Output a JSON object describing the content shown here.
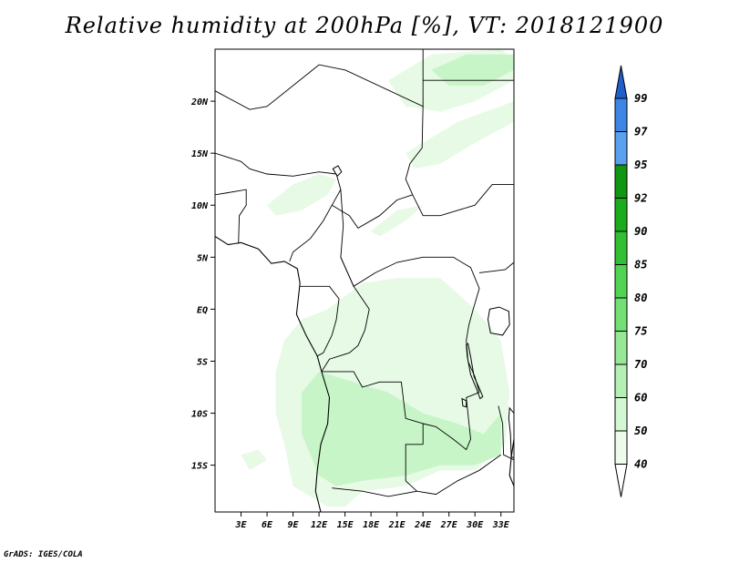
{
  "title": "Relative humidity at 200hPa [%], VT: 2018121900",
  "credit": "GrADS: IGES/COLA",
  "map": {
    "lon_range": [
      0,
      34.5
    ],
    "lat_range": [
      -19.5,
      25
    ],
    "lat_ticks": [
      {
        "lat": 20,
        "label": "20N"
      },
      {
        "lat": 15,
        "label": "15N"
      },
      {
        "lat": 10,
        "label": "10N"
      },
      {
        "lat": 5,
        "label": "5N"
      },
      {
        "lat": 0,
        "label": "EQ"
      },
      {
        "lat": -5,
        "label": "5S"
      },
      {
        "lat": -10,
        "label": "10S"
      },
      {
        "lat": -15,
        "label": "15S"
      }
    ],
    "lon_ticks": [
      {
        "lon": 3,
        "label": "3E"
      },
      {
        "lon": 6,
        "label": "6E"
      },
      {
        "lon": 9,
        "label": "9E"
      },
      {
        "lon": 12,
        "label": "12E"
      },
      {
        "lon": 15,
        "label": "15E"
      },
      {
        "lon": 18,
        "label": "18E"
      },
      {
        "lon": 21,
        "label": "21E"
      },
      {
        "lon": 24,
        "label": "24E"
      },
      {
        "lon": 27,
        "label": "27E"
      },
      {
        "lon": 30,
        "label": "30E"
      },
      {
        "lon": 33,
        "label": "33E"
      }
    ],
    "shaded_regions": [
      {
        "name": "southern-humid-band",
        "min_value": 40,
        "max_value": 50,
        "color": "#e6fae6",
        "points": [
          [
            13,
            -19
          ],
          [
            9,
            -17
          ],
          [
            8,
            -13
          ],
          [
            7,
            -10
          ],
          [
            7,
            -6
          ],
          [
            8,
            -3
          ],
          [
            10,
            -1
          ],
          [
            13,
            0
          ],
          [
            17,
            2.5
          ],
          [
            21,
            3
          ],
          [
            26,
            3
          ],
          [
            30,
            0
          ],
          [
            33,
            -3
          ],
          [
            34,
            -8
          ],
          [
            33.5,
            -13
          ],
          [
            30,
            -15.5
          ],
          [
            26,
            -15.5
          ],
          [
            22,
            -17
          ],
          [
            17,
            -17.5
          ],
          [
            15,
            -19
          ]
        ]
      },
      {
        "name": "southern-core",
        "min_value": 50,
        "max_value": 60,
        "color": "#c8f5c8",
        "points": [
          [
            12,
            -16
          ],
          [
            10,
            -12
          ],
          [
            10,
            -8
          ],
          [
            12,
            -6
          ],
          [
            16,
            -7
          ],
          [
            20,
            -8
          ],
          [
            24,
            -10
          ],
          [
            28,
            -11
          ],
          [
            31,
            -12
          ],
          [
            33,
            -10
          ],
          [
            33,
            -14
          ],
          [
            30,
            -15
          ],
          [
            26,
            -15
          ],
          [
            22,
            -16
          ],
          [
            17,
            -16.5
          ],
          [
            14,
            -17
          ]
        ]
      },
      {
        "name": "northeast-streak-1",
        "min_value": 40,
        "max_value": 50,
        "color": "#e6fae6",
        "points": [
          [
            20,
            22
          ],
          [
            25,
            24.5
          ],
          [
            33,
            25
          ],
          [
            34.5,
            24
          ],
          [
            34.5,
            22
          ],
          [
            30,
            20
          ],
          [
            26,
            19
          ],
          [
            22,
            19.5
          ]
        ]
      },
      {
        "name": "northeast-streak-2",
        "min_value": 50,
        "max_value": 60,
        "color": "#c8f5c8",
        "points": [
          [
            25,
            23
          ],
          [
            29,
            24.5
          ],
          [
            34.5,
            24.5
          ],
          [
            34.5,
            23
          ],
          [
            31,
            21.5
          ],
          [
            27,
            21.5
          ]
        ]
      },
      {
        "name": "northeast-streak-3",
        "min_value": 40,
        "max_value": 50,
        "color": "#e6fae6",
        "points": [
          [
            22,
            15
          ],
          [
            28,
            18
          ],
          [
            34.5,
            20
          ],
          [
            34.5,
            18
          ],
          [
            30,
            16
          ],
          [
            26,
            14
          ],
          [
            23,
            13.5
          ]
        ]
      },
      {
        "name": "west-african-patch",
        "min_value": 40,
        "max_value": 50,
        "color": "#e6fae6",
        "points": [
          [
            6,
            10
          ],
          [
            9,
            12
          ],
          [
            12,
            13
          ],
          [
            14,
            12.5
          ],
          [
            13,
            11
          ],
          [
            10,
            9.5
          ],
          [
            7,
            9
          ]
        ]
      },
      {
        "name": "central-streak",
        "min_value": 40,
        "max_value": 50,
        "color": "#e6fae6",
        "points": [
          [
            18,
            7.5
          ],
          [
            21,
            9.5
          ],
          [
            24,
            10
          ],
          [
            22,
            8.5
          ],
          [
            19,
            7
          ]
        ]
      },
      {
        "name": "southwest-fleck",
        "min_value": 40,
        "max_value": 50,
        "color": "#e6fae6",
        "points": [
          [
            3,
            -14
          ],
          [
            5,
            -13.5
          ],
          [
            6,
            -14.5
          ],
          [
            4,
            -15.5
          ]
        ]
      }
    ],
    "coastlines": [
      {
        "name": "west-coast",
        "points": [
          [
            0,
            7
          ],
          [
            1.5,
            6.2
          ],
          [
            3,
            6.4
          ],
          [
            5,
            5.8
          ],
          [
            6.5,
            4.4
          ],
          [
            8,
            4.6
          ],
          [
            9.5,
            3.9
          ],
          [
            9.8,
            2.5
          ],
          [
            9.6,
            1.0
          ],
          [
            9.4,
            -0.5
          ],
          [
            10.5,
            -2.5
          ],
          [
            11.8,
            -4.5
          ],
          [
            12.3,
            -6
          ],
          [
            13.2,
            -8.5
          ],
          [
            13.0,
            -11
          ],
          [
            12.2,
            -13
          ],
          [
            11.8,
            -15.5
          ],
          [
            11.6,
            -17.5
          ],
          [
            12.2,
            -19.5
          ]
        ]
      },
      {
        "name": "east-coast",
        "points": [
          [
            34.5,
            -12.5
          ],
          [
            34.2,
            -14.2
          ],
          [
            34.0,
            -16.0
          ],
          [
            34.5,
            -17.0
          ]
        ]
      }
    ],
    "borders": [
      {
        "name": "gulf-states",
        "points": [
          [
            0,
            11
          ],
          [
            1.5,
            11.2
          ],
          [
            3.6,
            11.5
          ],
          [
            3.6,
            10
          ],
          [
            2.8,
            9
          ],
          [
            2.7,
            6.3
          ]
        ]
      },
      {
        "name": "sahel-line",
        "points": [
          [
            0,
            15
          ],
          [
            3,
            14.2
          ],
          [
            4,
            13.5
          ],
          [
            6,
            13
          ],
          [
            9,
            12.8
          ],
          [
            12,
            13.2
          ],
          [
            14,
            13
          ]
        ]
      },
      {
        "name": "algeria-niger",
        "points": [
          [
            0,
            21
          ],
          [
            4,
            19.2
          ],
          [
            6,
            19.5
          ],
          [
            12,
            23.5
          ],
          [
            15,
            23
          ]
        ]
      },
      {
        "name": "libya-chad",
        "points": [
          [
            15,
            23
          ],
          [
            24,
            19.5
          ],
          [
            24,
            25
          ]
        ]
      },
      {
        "name": "chad-sudan",
        "points": [
          [
            24,
            19.5
          ],
          [
            23.9,
            15.5
          ],
          [
            22.5,
            14
          ],
          [
            22,
            12.5
          ],
          [
            22.8,
            11
          ]
        ]
      },
      {
        "name": "egypt-sudan",
        "points": [
          [
            24,
            22
          ],
          [
            34.5,
            22
          ]
        ]
      },
      {
        "name": "nigeria-cameroon",
        "points": [
          [
            14,
            13
          ],
          [
            14.5,
            11.5
          ],
          [
            13.5,
            10
          ],
          [
            12.5,
            8.5
          ],
          [
            11,
            6.8
          ],
          [
            9,
            5.5
          ],
          [
            8.6,
            4.6
          ]
        ]
      },
      {
        "name": "chad-car",
        "points": [
          [
            13.5,
            10
          ],
          [
            15.5,
            9
          ],
          [
            16.5,
            7.8
          ],
          [
            19,
            9
          ],
          [
            21,
            10.5
          ],
          [
            22.8,
            11
          ]
        ]
      },
      {
        "name": "car-drc",
        "points": [
          [
            14.5,
            5
          ],
          [
            16,
            2.2
          ],
          [
            18.5,
            3.5
          ],
          [
            21,
            4.5
          ],
          [
            24,
            5
          ],
          [
            27.5,
            5
          ]
        ]
      },
      {
        "name": "cameroon-car",
        "points": [
          [
            14.5,
            11.5
          ],
          [
            14.8,
            8
          ],
          [
            14.5,
            5
          ],
          [
            16,
            2.2
          ]
        ]
      },
      {
        "name": "gabon-congo",
        "points": [
          [
            9.8,
            2.2
          ],
          [
            11.3,
            2.2
          ],
          [
            13.2,
            2.2
          ],
          [
            14.3,
            1.0
          ],
          [
            14,
            -1
          ],
          [
            13.5,
            -2.5
          ],
          [
            12.5,
            -4.2
          ],
          [
            11.8,
            -4.5
          ]
        ]
      },
      {
        "name": "congo-drc",
        "points": [
          [
            16,
            2.2
          ],
          [
            17.8,
            0
          ],
          [
            17.3,
            -2
          ],
          [
            16.5,
            -3.5
          ],
          [
            15.5,
            -4.2
          ],
          [
            13.2,
            -4.8
          ],
          [
            12.3,
            -6
          ]
        ]
      },
      {
        "name": "angola-drc",
        "points": [
          [
            12.3,
            -6
          ],
          [
            16,
            -6
          ],
          [
            17,
            -7.5
          ],
          [
            19,
            -7
          ],
          [
            21.5,
            -7
          ],
          [
            22,
            -10.5
          ],
          [
            24,
            -11
          ],
          [
            24,
            -13
          ]
        ]
      },
      {
        "name": "angola-zambia",
        "points": [
          [
            24,
            -13
          ],
          [
            22,
            -13
          ],
          [
            22,
            -16.5
          ],
          [
            23.3,
            -17.5
          ],
          [
            20,
            -18
          ],
          [
            17,
            -17.5
          ],
          [
            13.5,
            -17.2
          ]
        ]
      },
      {
        "name": "zambia-drc",
        "points": [
          [
            24,
            -11
          ],
          [
            25.5,
            -11.3
          ],
          [
            27.5,
            -12.5
          ],
          [
            29,
            -13.5
          ],
          [
            29.5,
            -12.5
          ],
          [
            29,
            -8.5
          ],
          [
            30.5,
            -8
          ]
        ]
      },
      {
        "name": "drc-east",
        "points": [
          [
            27.5,
            5
          ],
          [
            29.5,
            4
          ],
          [
            30.5,
            2
          ],
          [
            29.8,
            0
          ],
          [
            29.3,
            -1.5
          ],
          [
            29,
            -3
          ],
          [
            29.2,
            -5
          ],
          [
            30,
            -6.5
          ],
          [
            30.5,
            -8
          ]
        ]
      },
      {
        "name": "uganda-kenya",
        "points": [
          [
            30.5,
            3.5
          ],
          [
            33.5,
            3.8
          ],
          [
            34.5,
            4.5
          ]
        ]
      },
      {
        "name": "south-sudan",
        "points": [
          [
            22.8,
            11
          ],
          [
            24,
            9
          ],
          [
            26,
            9
          ],
          [
            28,
            9.5
          ],
          [
            30,
            10
          ],
          [
            32,
            12
          ],
          [
            34.5,
            12
          ]
        ]
      },
      {
        "name": "zambia-south",
        "points": [
          [
            23.3,
            -17.5
          ],
          [
            25.5,
            -17.8
          ],
          [
            28,
            -16.5
          ],
          [
            30.5,
            -15.5
          ],
          [
            33,
            -14
          ]
        ]
      },
      {
        "name": "malawi",
        "points": [
          [
            32.7,
            -9.3
          ],
          [
            33.2,
            -11
          ],
          [
            33.3,
            -14
          ],
          [
            34.5,
            -14.5
          ]
        ]
      }
    ],
    "lakes": [
      {
        "name": "lake-victoria",
        "points": [
          [
            31.7,
            0
          ],
          [
            32.8,
            0.2
          ],
          [
            33.9,
            -0.2
          ],
          [
            34,
            -1.5
          ],
          [
            33.2,
            -2.5
          ],
          [
            31.8,
            -2.3
          ],
          [
            31.5,
            -1
          ]
        ]
      },
      {
        "name": "lake-tanganyika",
        "points": [
          [
            29.2,
            -3.3
          ],
          [
            29.5,
            -4.6
          ],
          [
            29.9,
            -6.5
          ],
          [
            30.5,
            -7.6
          ],
          [
            30.9,
            -8.4
          ],
          [
            30.6,
            -8.6
          ],
          [
            30.1,
            -7.5
          ],
          [
            29.5,
            -6.3
          ],
          [
            29.1,
            -4.5
          ],
          [
            29.0,
            -3.4
          ]
        ]
      },
      {
        "name": "lake-malawi",
        "points": [
          [
            34,
            -9.5
          ],
          [
            34.5,
            -10
          ],
          [
            34.5,
            -14.3
          ],
          [
            34.2,
            -14.2
          ],
          [
            34.1,
            -12
          ],
          [
            33.9,
            -10.5
          ]
        ]
      },
      {
        "name": "lake-chad",
        "points": [
          [
            13.6,
            13.5
          ],
          [
            14.2,
            13.8
          ],
          [
            14.6,
            13.2
          ],
          [
            14.1,
            12.8
          ]
        ]
      },
      {
        "name": "lake-mweru",
        "points": [
          [
            28.5,
            -8.6
          ],
          [
            29.0,
            -8.8
          ],
          [
            29,
            -9.4
          ],
          [
            28.6,
            -9.3
          ]
        ]
      }
    ]
  },
  "colorbar": {
    "levels": [
      {
        "label": "99",
        "color": "#2a6fd6"
      },
      {
        "label": "97",
        "color": "#3d86e6"
      },
      {
        "label": "95",
        "color": "#5aa0ee"
      },
      {
        "label": "92",
        "color": "#119611"
      },
      {
        "label": "90",
        "color": "#1aac1a"
      },
      {
        "label": "85",
        "color": "#32c032"
      },
      {
        "label": "80",
        "color": "#52d452"
      },
      {
        "label": "75",
        "color": "#73e073"
      },
      {
        "label": "70",
        "color": "#96e896"
      },
      {
        "label": "60",
        "color": "#b4f0b4"
      },
      {
        "label": "50",
        "color": "#d4f8d4"
      },
      {
        "label": "40",
        "color": "#edfced"
      }
    ],
    "top_color": "#1e5fc8",
    "bottom_color": "#ffffff"
  }
}
